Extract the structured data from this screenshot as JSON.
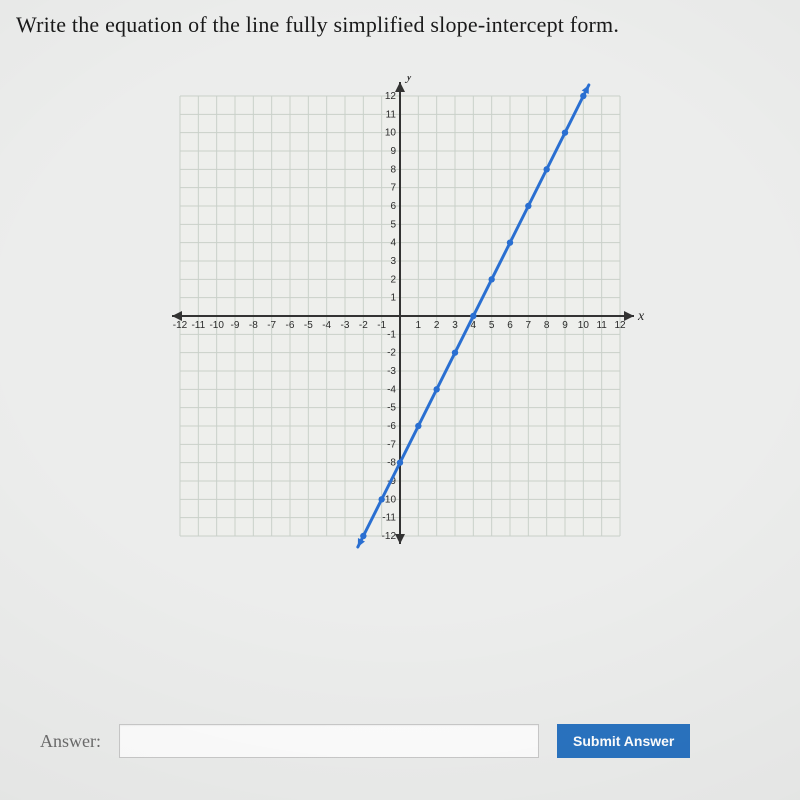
{
  "prompt": "Write the equation of the line fully simplified slope-intercept form.",
  "answer_label": "Answer:",
  "submit_label": "Submit Answer",
  "chart": {
    "type": "line",
    "min": -12,
    "max": 12,
    "step": 1,
    "pixel_extent": 440,
    "x_axis_label": "x",
    "y_axis_label": "y",
    "grid_color": "#c9d0c9",
    "grid_width": 1,
    "axis_color": "#333333",
    "axis_width": 2,
    "tick_font_size": 10,
    "tick_font_family": "Arial, Helvetica, sans-serif",
    "tick_color": "#2a2a2a",
    "axis_label_font_size": 14,
    "bg_color": "#eeefec",
    "x_ticks": [
      -12,
      -11,
      -10,
      -9,
      -8,
      -7,
      -6,
      -5,
      -4,
      -3,
      -2,
      -1,
      1,
      2,
      3,
      4,
      5,
      6,
      7,
      8,
      9,
      10,
      11,
      12
    ],
    "y_ticks": [
      12,
      11,
      10,
      9,
      8,
      7,
      6,
      5,
      4,
      3,
      2,
      1,
      -1,
      -2,
      -3,
      -4,
      -5,
      -6,
      -7,
      -8,
      -9,
      -10,
      -11,
      -12
    ],
    "line": {
      "color": "#2a6fd1",
      "width": 3,
      "points": [
        {
          "x": -2,
          "y": -12
        },
        {
          "x": -1,
          "y": -10
        },
        {
          "x": 0,
          "y": -8
        },
        {
          "x": 1,
          "y": -6
        },
        {
          "x": 2,
          "y": -4
        },
        {
          "x": 3,
          "y": -2
        },
        {
          "x": 4,
          "y": 0
        },
        {
          "x": 5,
          "y": 2
        },
        {
          "x": 6,
          "y": 4
        },
        {
          "x": 7,
          "y": 6
        },
        {
          "x": 8,
          "y": 8
        },
        {
          "x": 9,
          "y": 10
        },
        {
          "x": 10,
          "y": 12
        }
      ],
      "marker_radius": 3.2,
      "marker_fill": "#2a6fd1",
      "arrow_size": 9,
      "extend_start": {
        "x": -2.3,
        "y": -12.6
      },
      "extend_end": {
        "x": 10.3,
        "y": 12.6
      }
    }
  }
}
